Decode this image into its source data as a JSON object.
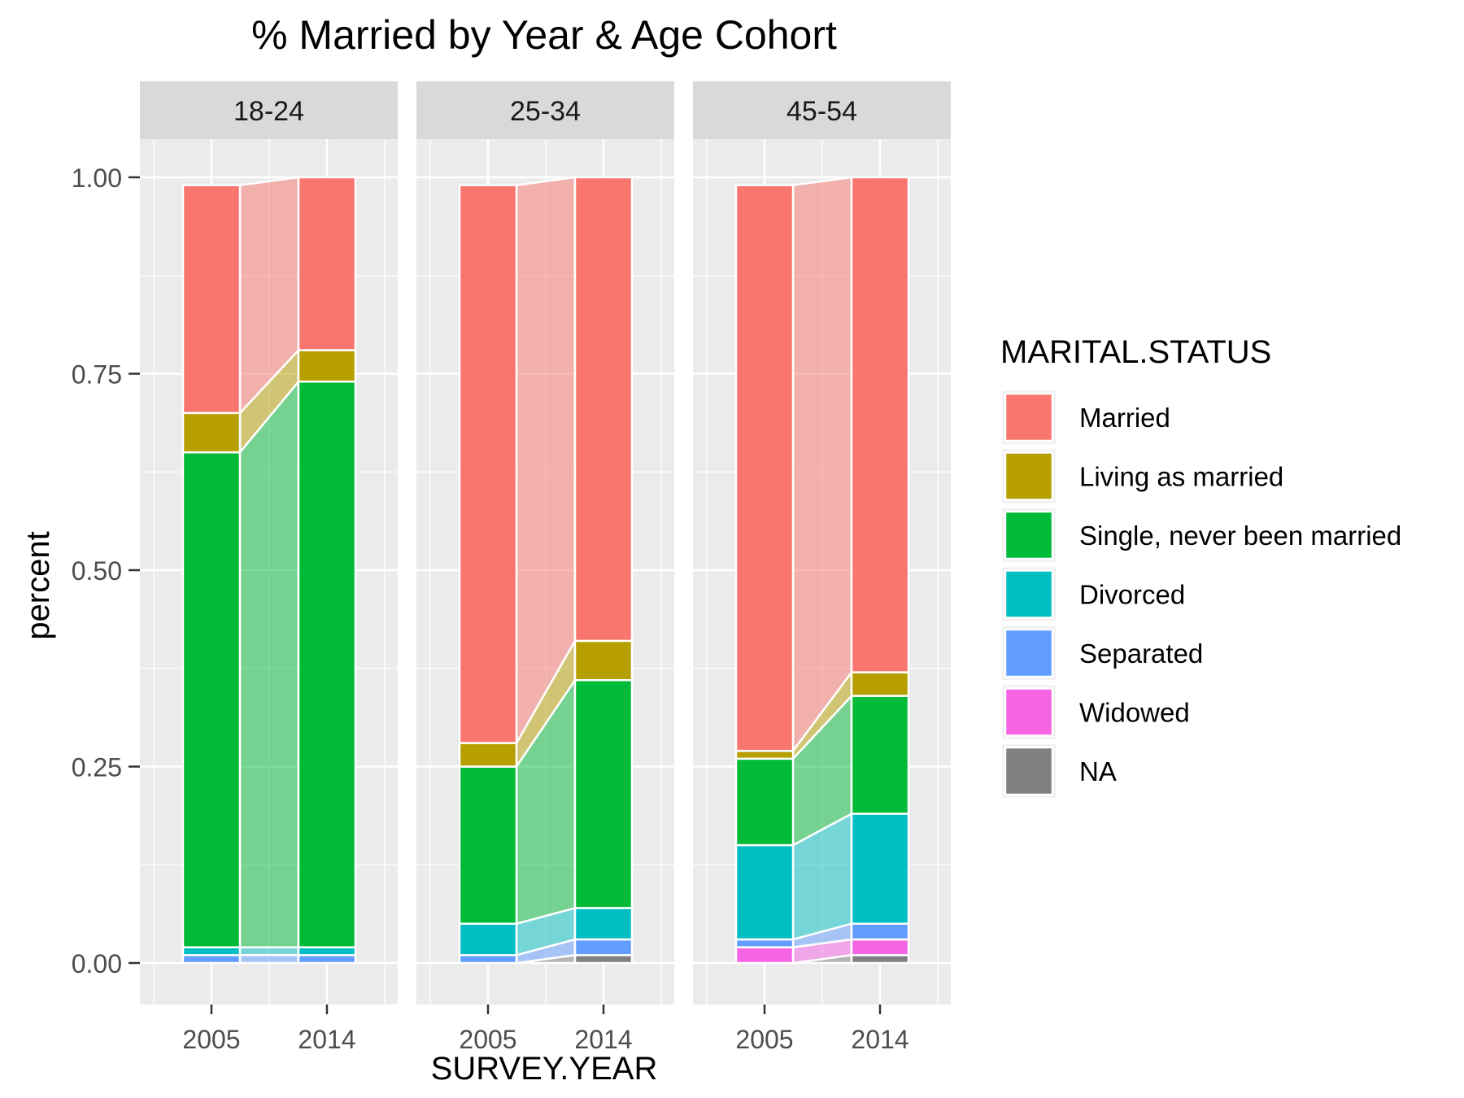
{
  "chart_data": {
    "type": "bar",
    "subtype": "stacked-bar-with-alluvium",
    "title": "% Married by Year & Age Cohort",
    "xlabel": "SURVEY.YEAR",
    "ylabel": "percent",
    "ylim": [
      0,
      1.05
    ],
    "y_ticks": [
      "0.00",
      "0.25",
      "0.50",
      "0.75",
      "1.00"
    ],
    "y_tick_values": [
      0,
      0.25,
      0.5,
      0.75,
      1.0
    ],
    "x_ticks": [
      "2005",
      "2014"
    ],
    "grid": true,
    "legend": {
      "title": "MARITAL.STATUS",
      "placement": "right",
      "entries": [
        "Married",
        "Living as married",
        "Single, never been married",
        "Divorced",
        "Separated",
        "Widowed",
        "NA"
      ]
    },
    "colors": {
      "Married": "#F8766D",
      "Living as married": "#B79F00",
      "Single, never been married": "#00BA38",
      "Divorced": "#00BFC4",
      "Separated": "#619CFF",
      "Widowed": "#F564E3",
      "NA": "#808080"
    },
    "stack_order_top_to_bottom": [
      "Married",
      "Living as married",
      "Single, never been married",
      "Divorced",
      "Separated",
      "Widowed",
      "NA"
    ],
    "panels": [
      {
        "label": "18-24",
        "years": [
          "2005",
          "2014"
        ],
        "series": [
          {
            "name": "Married",
            "values": [
              0.29,
              0.22
            ]
          },
          {
            "name": "Living as married",
            "values": [
              0.05,
              0.04
            ]
          },
          {
            "name": "Single, never been married",
            "values": [
              0.63,
              0.72
            ]
          },
          {
            "name": "Divorced",
            "values": [
              0.01,
              0.01
            ]
          },
          {
            "name": "Separated",
            "values": [
              0.01,
              0.01
            ]
          },
          {
            "name": "Widowed",
            "values": [
              0.0,
              0.0
            ]
          },
          {
            "name": "NA",
            "values": [
              0.0,
              0.0
            ]
          }
        ]
      },
      {
        "label": "25-34",
        "years": [
          "2005",
          "2014"
        ],
        "series": [
          {
            "name": "Married",
            "values": [
              0.71,
              0.59
            ]
          },
          {
            "name": "Living as married",
            "values": [
              0.03,
              0.05
            ]
          },
          {
            "name": "Single, never been married",
            "values": [
              0.2,
              0.29
            ]
          },
          {
            "name": "Divorced",
            "values": [
              0.04,
              0.04
            ]
          },
          {
            "name": "Separated",
            "values": [
              0.01,
              0.02
            ]
          },
          {
            "name": "Widowed",
            "values": [
              0.0,
              0.0
            ]
          },
          {
            "name": "NA",
            "values": [
              0.0,
              0.01
            ]
          }
        ]
      },
      {
        "label": "45-54",
        "years": [
          "2005",
          "2014"
        ],
        "series": [
          {
            "name": "Married",
            "values": [
              0.72,
              0.63
            ]
          },
          {
            "name": "Living as married",
            "values": [
              0.01,
              0.03
            ]
          },
          {
            "name": "Single, never been married",
            "values": [
              0.11,
              0.15
            ]
          },
          {
            "name": "Divorced",
            "values": [
              0.12,
              0.14
            ]
          },
          {
            "name": "Separated",
            "values": [
              0.01,
              0.02
            ]
          },
          {
            "name": "Widowed",
            "values": [
              0.02,
              0.02
            ]
          },
          {
            "name": "NA",
            "values": [
              0.0,
              0.01
            ]
          }
        ]
      }
    ]
  }
}
